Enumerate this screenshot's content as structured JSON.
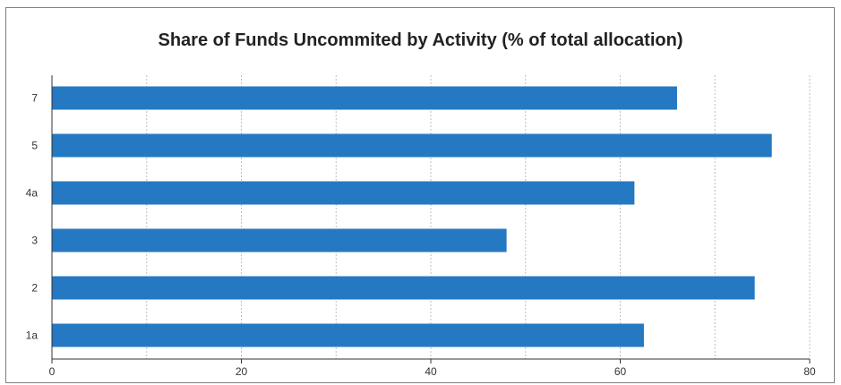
{
  "chart_data": {
    "type": "bar",
    "orientation": "horizontal",
    "title": "Share of Funds Uncommited by Activity (% of total allocation)",
    "xlabel": "",
    "ylabel": "",
    "categories": [
      "7",
      "5",
      "4a",
      "3",
      "2",
      "1a"
    ],
    "values": [
      66,
      76,
      61.5,
      48,
      74.2,
      62.5
    ],
    "xlim": [
      0,
      80
    ],
    "x_ticks": [
      0,
      20,
      40,
      60,
      80
    ],
    "grid": true,
    "bar_color": "#2479c2",
    "grid_color": "#bfbfbf"
  }
}
